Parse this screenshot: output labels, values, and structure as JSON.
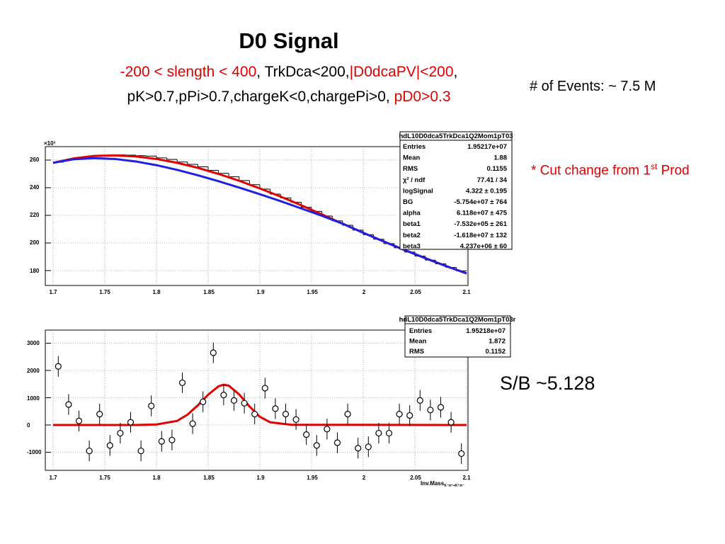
{
  "header": {
    "title": "D0 Signal",
    "cut1_red_a": "-200 < slength < 400",
    "cut1_black": ", TrkDca<200,",
    "cut1_red_b": "|D0dcaPV|<200",
    "cut1_tail": ",",
    "cut2_black": "pK>0.7,pPi>0.7,chargeK<0,chargePi>0, ",
    "cut2_red": "pD0>0.3"
  },
  "notes": {
    "events": "# of Events: ~ 7.5 M",
    "cut_change_pre": "* Cut change from 1",
    "cut_change_sup": "st",
    "cut_change_post": " Prod",
    "sb": "S/B ~5.128"
  },
  "colors": {
    "fit_red": "#e00000",
    "fit_blue": "#2020e0",
    "text_red": "#e00000"
  },
  "top_stats": {
    "name": "hdL10D0dca5TrkDca1Q2Mom1pT03",
    "rows": [
      {
        "label": "Entries",
        "value": "1.95217e+07"
      },
      {
        "label": "Mean",
        "value": "1.88"
      },
      {
        "label": "RMS",
        "value": "0.1155"
      },
      {
        "label": "χ² / ndf",
        "value": "77.41 / 34"
      },
      {
        "label": "logSignal",
        "value": "4.322 ± 0.195"
      },
      {
        "label": "BG",
        "value": "-5.754e+07 ± 764"
      },
      {
        "label": "alpha",
        "value": "6.118e+07 ± 475"
      },
      {
        "label": "beta1",
        "value": "-7.532e+05 ± 261"
      },
      {
        "label": "beta2",
        "value": "-1.618e+07 ± 132"
      },
      {
        "label": "beta3",
        "value": "4.237e+06 ± 60"
      }
    ]
  },
  "bottom_stats": {
    "name": "hdL10D0dca5TrkDca1Q2Mom1pT03r",
    "rows": [
      {
        "label": "Entries",
        "value": "1.95218e+07"
      },
      {
        "label": "Mean",
        "value": "1.872"
      },
      {
        "label": "RMS",
        "value": "0.1152"
      }
    ]
  },
  "chart_data": [
    {
      "type": "line",
      "title": "",
      "xlabel": "",
      "ylabel": "",
      "y_multiplier_label": "×10³",
      "xlim": [
        1.7,
        2.1
      ],
      "ylim": [
        170,
        268
      ],
      "x_ticks": [
        "1.7",
        "1.75",
        "1.8",
        "1.85",
        "1.9",
        "1.95",
        "2",
        "2.05",
        "2.1"
      ],
      "y_ticks": [
        "180",
        "200",
        "220",
        "240",
        "260"
      ],
      "grid": true,
      "histogram": {
        "x": [
          1.705,
          1.715,
          1.725,
          1.735,
          1.745,
          1.755,
          1.765,
          1.775,
          1.785,
          1.795,
          1.805,
          1.815,
          1.825,
          1.835,
          1.845,
          1.855,
          1.865,
          1.875,
          1.885,
          1.895,
          1.905,
          1.915,
          1.925,
          1.935,
          1.945,
          1.955,
          1.965,
          1.975,
          1.985,
          1.995,
          2.005,
          2.015,
          2.025,
          2.035,
          2.045,
          2.055,
          2.065,
          2.075,
          2.085,
          2.095
        ],
        "y": [
          258.5,
          260.2,
          261.5,
          262.5,
          263.0,
          263.5,
          263.8,
          263.6,
          263.2,
          262.9,
          261.6,
          260.5,
          258.6,
          256.9,
          255.1,
          252.6,
          250.4,
          247.9,
          245.2,
          242.2,
          239.0,
          235.4,
          232.6,
          229.5,
          225.8,
          222.9,
          219.5,
          216.0,
          212.8,
          209.3,
          206.0,
          202.7,
          199.5,
          196.5,
          193.4,
          190.5,
          187.6,
          184.9,
          182.3,
          179.8
        ]
      },
      "series": [
        {
          "name": "",
          "color": "#e00000",
          "x": [
            1.7,
            1.72,
            1.74,
            1.76,
            1.78,
            1.8,
            1.82,
            1.84,
            1.86,
            1.88,
            1.9,
            1.92,
            1.94,
            1.96,
            1.98,
            2.0,
            2.02,
            2.04,
            2.06,
            2.08,
            2.1
          ],
          "y": [
            258.0,
            261.2,
            263.0,
            263.4,
            262.6,
            260.8,
            258.0,
            254.4,
            250.0,
            245.0,
            239.5,
            233.6,
            227.3,
            220.7,
            214.0,
            207.4,
            201.0,
            194.9,
            189.0,
            183.3,
            178.0
          ]
        },
        {
          "name": "",
          "color": "#2020e0",
          "x": [
            1.7,
            1.72,
            1.74,
            1.76,
            1.78,
            1.8,
            1.82,
            1.84,
            1.86,
            1.88,
            1.9,
            1.92,
            1.94,
            1.96,
            1.98,
            2.0,
            2.02,
            2.04,
            2.06,
            2.08,
            2.1
          ],
          "y": [
            258.0,
            260.6,
            261.4,
            260.8,
            259.0,
            256.3,
            252.9,
            249.0,
            244.7,
            240.1,
            235.3,
            230.3,
            225.0,
            219.7,
            214.0,
            207.4,
            201.0,
            194.9,
            189.0,
            183.3,
            178.0
          ]
        }
      ]
    },
    {
      "type": "scatter",
      "title": "",
      "xlabel": "Inv.Mass",
      "xlabel_sub": "K⁻π⁺+K⁺π⁻",
      "ylabel": "",
      "xlim": [
        1.7,
        2.1
      ],
      "ylim": [
        -1450,
        3350
      ],
      "x_ticks": [
        "1.7",
        "1.75",
        "1.8",
        "1.85",
        "1.9",
        "1.95",
        "2",
        "2.05",
        "2.1"
      ],
      "y_ticks": [
        "-1000",
        "0",
        "1000",
        "2000",
        "3000"
      ],
      "grid": true,
      "points": {
        "x": [
          1.705,
          1.715,
          1.725,
          1.735,
          1.745,
          1.755,
          1.765,
          1.775,
          1.785,
          1.795,
          1.805,
          1.815,
          1.825,
          1.835,
          1.845,
          1.855,
          1.865,
          1.875,
          1.885,
          1.895,
          1.905,
          1.915,
          1.925,
          1.935,
          1.945,
          1.955,
          1.965,
          1.975,
          1.985,
          1.995,
          2.005,
          2.015,
          2.025,
          2.035,
          2.045,
          2.055,
          2.065,
          2.075,
          2.085,
          2.095
        ],
        "y": [
          2150,
          750,
          150,
          -950,
          400,
          -750,
          -300,
          100,
          -950,
          700,
          -600,
          -550,
          1550,
          50,
          850,
          2650,
          1100,
          900,
          800,
          400,
          1350,
          600,
          400,
          200,
          -350,
          -750,
          -150,
          -650,
          400,
          -850,
          -800,
          -300,
          -300,
          400,
          350,
          900,
          550,
          650,
          100,
          -1050
        ],
        "err": [
          380,
          380,
          380,
          380,
          380,
          380,
          380,
          380,
          380,
          380,
          380,
          380,
          380,
          380,
          380,
          380,
          380,
          380,
          380,
          380,
          380,
          380,
          380,
          380,
          380,
          380,
          380,
          380,
          380,
          380,
          380,
          380,
          380,
          380,
          380,
          380,
          380,
          380,
          380,
          380
        ]
      },
      "series": [
        {
          "name": "",
          "color": "#e00000",
          "x": [
            1.7,
            1.78,
            1.8,
            1.82,
            1.83,
            1.84,
            1.85,
            1.86,
            1.865,
            1.87,
            1.88,
            1.89,
            1.9,
            1.91,
            1.93,
            2.1
          ],
          "y": [
            0,
            0,
            20,
            150,
            380,
            720,
            1110,
            1420,
            1480,
            1440,
            1120,
            680,
            300,
            100,
            10,
            0
          ]
        }
      ]
    }
  ]
}
